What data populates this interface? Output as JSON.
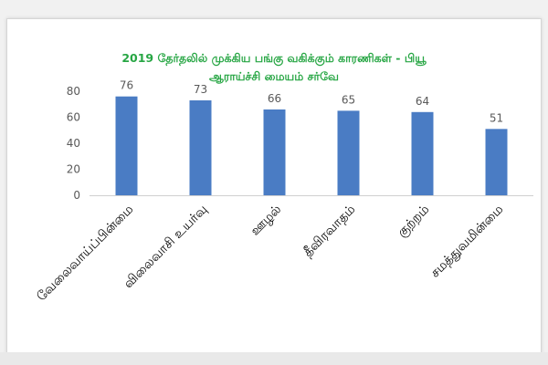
{
  "chart_data": {
    "type": "bar",
    "title_line1": "2019 தேர்தலில் முக்கிய பங்கு வகிக்கும் காரணிகள் - பியூ",
    "title_line2": "ஆராய்ச்சி மையம் சர்வே",
    "categories": [
      "வேலைவாய்ப்பின்மை",
      "விலைவாசி உயர்வு",
      "ஊழல்",
      "தீவிரவாதம்",
      "குற்றம்",
      "சமத்துவமின்மை"
    ],
    "values": [
      76,
      73,
      66,
      65,
      64,
      51
    ],
    "ylim": [
      0,
      80
    ],
    "yticks": [
      0,
      20,
      40,
      60,
      80
    ],
    "grid": false,
    "legend": "none",
    "bar_color": "#4a7cc4",
    "title_color": "#27a644"
  }
}
